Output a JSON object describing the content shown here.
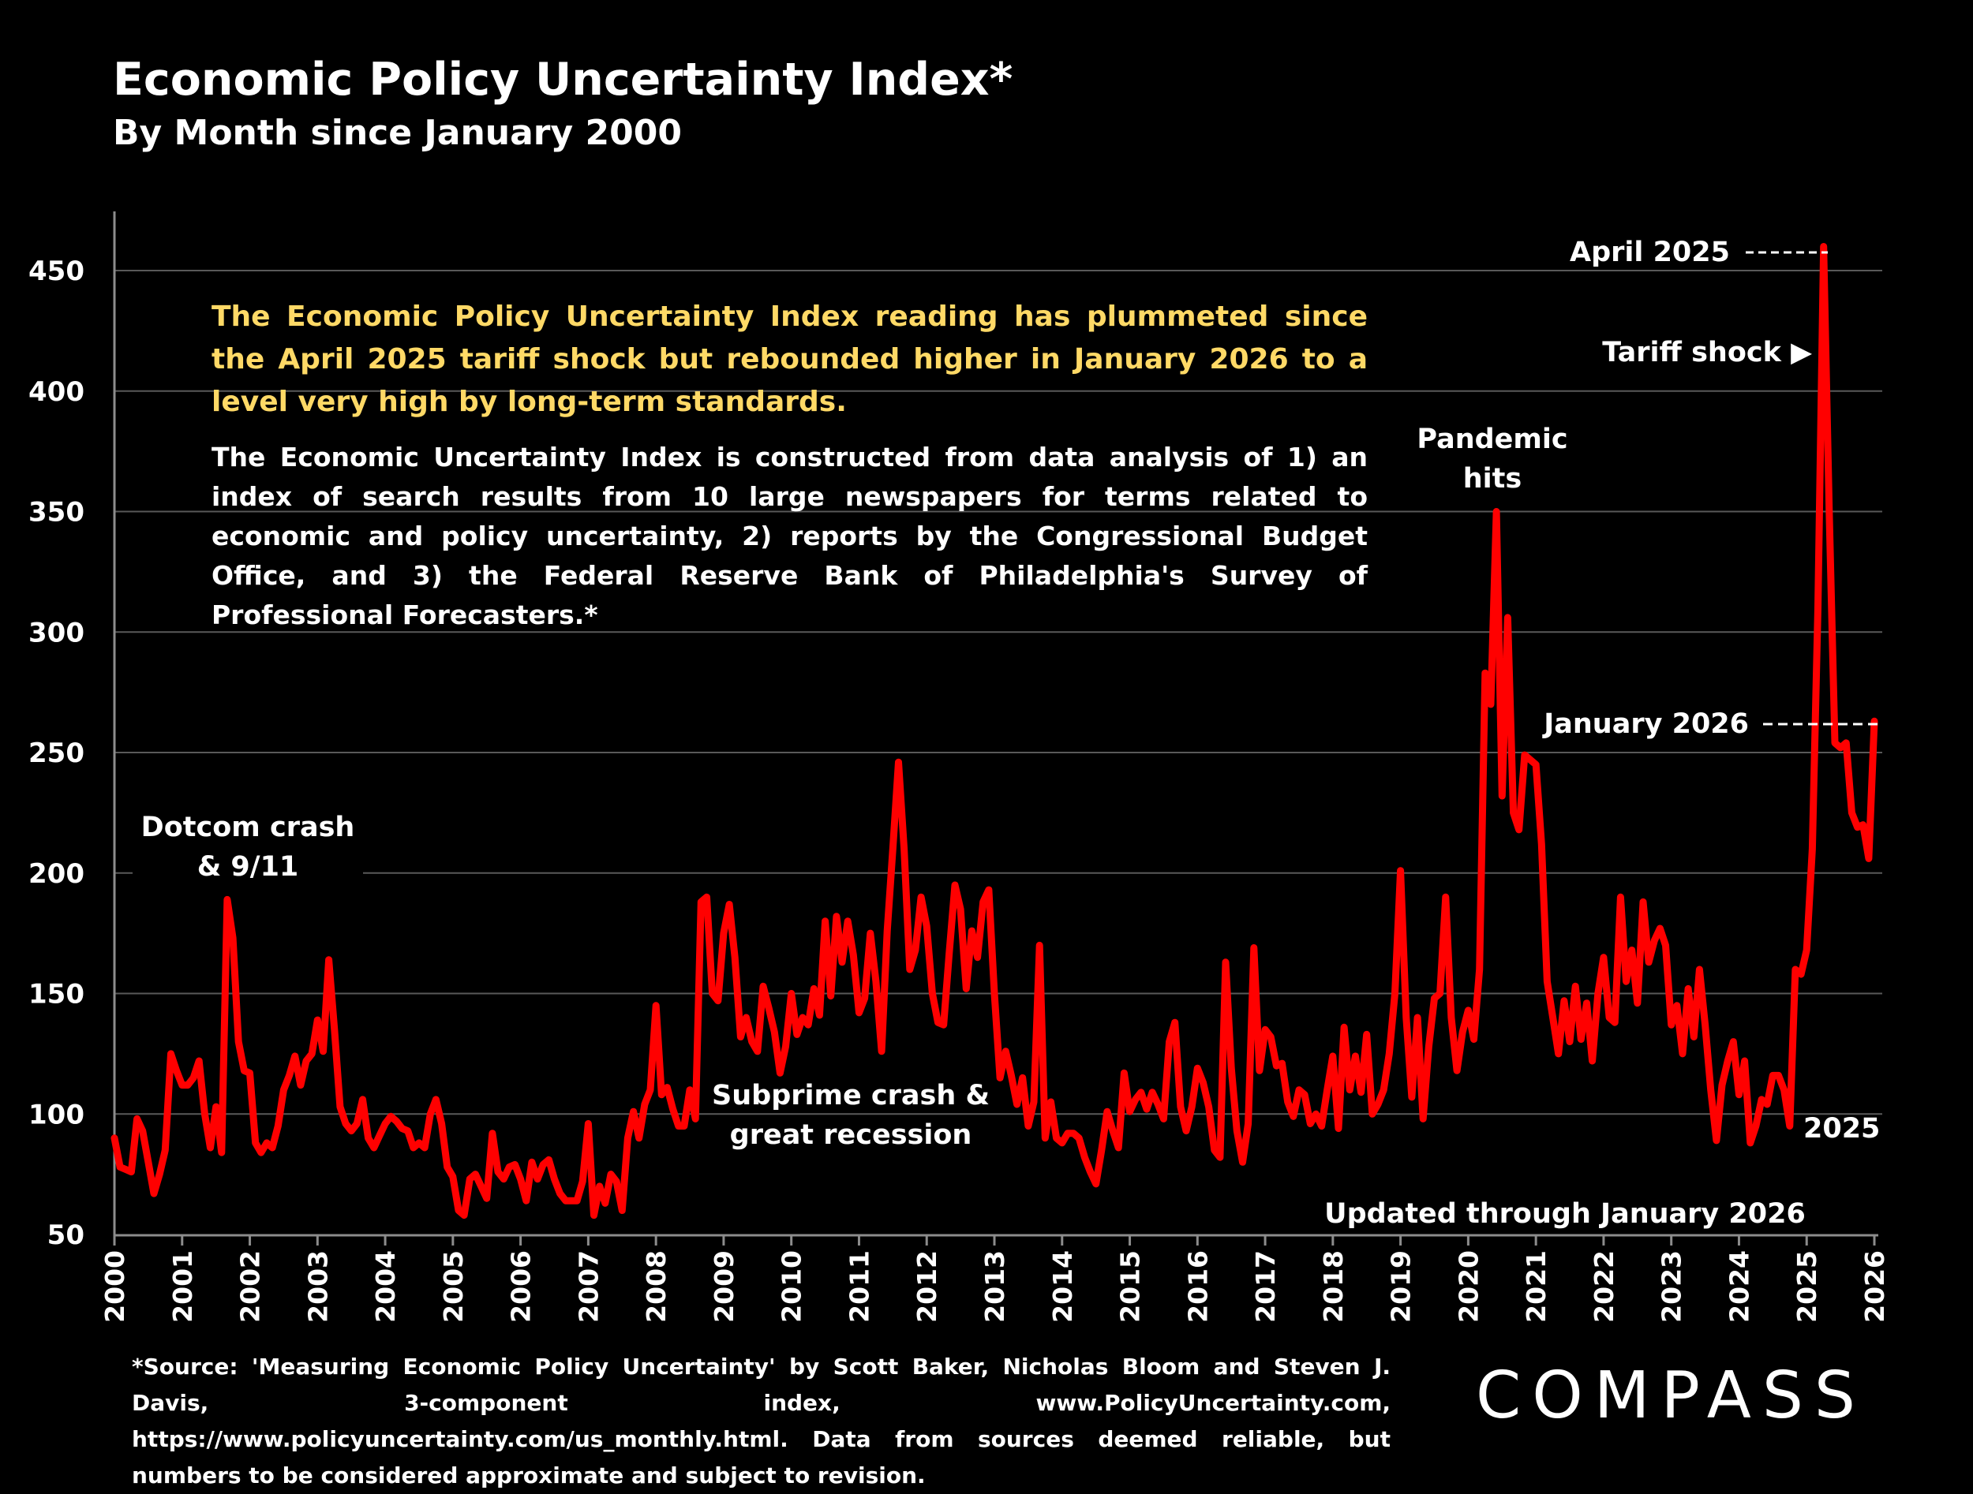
{
  "title": "Economic Policy Uncertainty Index*",
  "subtitle": "By Month since January 2000",
  "headline_note": "The Economic Policy Uncertainty Index reading has plummeted since the April 2025 tariff shock but rebounded higher in January 2026 to a level very high by long-term standards.",
  "description_note": "The Economic Uncertainty Index is constructed from data analysis of 1) an index of search results from 10 large newspapers for terms related to economic and policy uncertainty, 2) reports by the Congressional Budget Office, and 3) the Federal Reserve Bank of Philadelphia's Survey of Professional Forecasters.*",
  "footer_source": "*Source: 'Measuring Economic Policy Uncertainty' by Scott Baker, Nicholas Bloom and Steven J. Davis, 3-component index, www.PolicyUncertainty.com, https://www.policyuncertainty.com/us_monthly.html. Data from sources deemed reliable, but numbers to be considered approximate and subject to revision.",
  "logo": "COMPASS",
  "colors": {
    "line": "#FF0000",
    "headline": "#FFD966",
    "background": "#000000",
    "grid": "#595959"
  },
  "chart_data": {
    "type": "line",
    "frequency": "monthly",
    "ylim": [
      50,
      450
    ],
    "yticks": [
      50,
      100,
      150,
      200,
      250,
      300,
      350,
      400,
      450
    ],
    "xticks": [
      "2000",
      "2001",
      "2002",
      "2003",
      "2004",
      "2005",
      "2006",
      "2007",
      "2008",
      "2009",
      "2010",
      "2011",
      "2012",
      "2013",
      "2014",
      "2015",
      "2016",
      "2017",
      "2018",
      "2019",
      "2020",
      "2021",
      "2022",
      "2023",
      "2024",
      "2025",
      "2026"
    ],
    "grid": true,
    "annotations": {
      "dotcom_1": "Dotcom crash",
      "dotcom_2": "& 9/11",
      "subprime_1": "Subprime crash &",
      "subprime_2": "great recession",
      "pandemic_1": "Pandemic",
      "pandemic_2": "hits",
      "april_2025": "April 2025",
      "tariff": "Tariff shock ▶",
      "jan_2026": "January 2026",
      "year_2025": "2025",
      "updated": "Updated through January 2026"
    },
    "values_by_year": {
      "2000": [
        90,
        78,
        77,
        76,
        98,
        93,
        80,
        67,
        75,
        85,
        125,
        118
      ],
      "2001": [
        112,
        112,
        115,
        122,
        100,
        86,
        103,
        84,
        189,
        173,
        130,
        118
      ],
      "2002": [
        117,
        88,
        84,
        88,
        86,
        95,
        110,
        116,
        124,
        112,
        122,
        125
      ],
      "2003": [
        139,
        126,
        164,
        135,
        103,
        96,
        93,
        96,
        106,
        90,
        86,
        91
      ],
      "2004": [
        96,
        99,
        97,
        94,
        93,
        86,
        88,
        86,
        100,
        106,
        96,
        78
      ],
      "2005": [
        74,
        60,
        58,
        73,
        75,
        70,
        65,
        92,
        76,
        73,
        78,
        79
      ],
      "2006": [
        73,
        64,
        80,
        73,
        79,
        81,
        73,
        67,
        64,
        64,
        64,
        72
      ],
      "2007": [
        96,
        58,
        70,
        63,
        75,
        72,
        60,
        90,
        101,
        90,
        104,
        110
      ],
      "2008": [
        145,
        108,
        111,
        102,
        95,
        95,
        110,
        98,
        188,
        190,
        150,
        147
      ],
      "2009": [
        175,
        187,
        165,
        132,
        140,
        130,
        126,
        153,
        144,
        134,
        117,
        128
      ],
      "2010": [
        150,
        133,
        140,
        137,
        152,
        141,
        180,
        149,
        182,
        163,
        180,
        166
      ],
      "2011": [
        142,
        148,
        175,
        155,
        126,
        176,
        210,
        246,
        210,
        160,
        168,
        190
      ],
      "2012": [
        178,
        150,
        138,
        137,
        167,
        195,
        185,
        152,
        176,
        165,
        188,
        193
      ],
      "2013": [
        150,
        115,
        126,
        116,
        104,
        115,
        95,
        105,
        170,
        90,
        105,
        90
      ],
      "2014": [
        88,
        92,
        92,
        90,
        82,
        76,
        71,
        85,
        101,
        93,
        86,
        117
      ],
      "2015": [
        101,
        106,
        109,
        102,
        109,
        104,
        98,
        130,
        138,
        103,
        93,
        103
      ],
      "2016": [
        119,
        113,
        103,
        85,
        82,
        163,
        119,
        93,
        80,
        96,
        169,
        118
      ],
      "2017": [
        135,
        132,
        120,
        121,
        105,
        99,
        110,
        108,
        96,
        100,
        95,
        110
      ],
      "2018": [
        124,
        94,
        136,
        110,
        124,
        109,
        133,
        100,
        104,
        110,
        125,
        150
      ],
      "2019": [
        201,
        140,
        107,
        140,
        98,
        128,
        148,
        150,
        190,
        140,
        118,
        134
      ],
      "2020": [
        143,
        131,
        160,
        283,
        270,
        350,
        232,
        306,
        225,
        218,
        249,
        247
      ],
      "2021": [
        245,
        212,
        155,
        140,
        125,
        147,
        130,
        153,
        131,
        146,
        122,
        150
      ],
      "2022": [
        165,
        140,
        138,
        190,
        155,
        168,
        146,
        188,
        163,
        172,
        177,
        170
      ],
      "2023": [
        137,
        145,
        125,
        152,
        132,
        160,
        137,
        110,
        89,
        112,
        122,
        130
      ],
      "2024": [
        108,
        122,
        88,
        95,
        106,
        104,
        116,
        116,
        110,
        95,
        160,
        158
      ],
      "2025": [
        168,
        210,
        310,
        460,
        350,
        254,
        252,
        254,
        225,
        219,
        220,
        206
      ],
      "2026": [
        263
      ]
    }
  }
}
